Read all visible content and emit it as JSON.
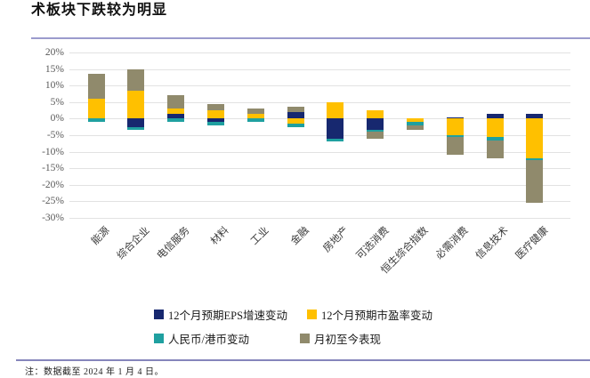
{
  "page": {
    "title": "术板块下跌较为明显",
    "footnote": "注：数据截至 2024 年 1 月 4 日。"
  },
  "chart_data": {
    "type": "bar",
    "stacked": true,
    "title": "术板块下跌较为明显",
    "xlabel": "",
    "ylabel": "",
    "ylim": [
      -30,
      20
    ],
    "y_tick_step": 5,
    "y_tick_labels": [
      "20%",
      "15%",
      "10%",
      "5%",
      "0%",
      "-5%",
      "-10%",
      "-15%",
      "-20%",
      "-25%",
      "-30%"
    ],
    "grid": true,
    "legend_position": "bottom",
    "categories": [
      "能源",
      "综合企业",
      "电信服务",
      "材料",
      "工业",
      "金融",
      "房地产",
      "可选消费",
      "恒生综合指数",
      "必需消费",
      "信息技术",
      "医疗健康"
    ],
    "series": [
      {
        "name": "12个月预期EPS增速变动",
        "color": "#17286F",
        "values": [
          0,
          -2.5,
          1.5,
          -1,
          0,
          2,
          -6,
          -3.5,
          0,
          0.5,
          1.5,
          1.5
        ]
      },
      {
        "name": "12个月预期市盈率变动",
        "color": "#FFC000",
        "values": [
          6,
          8.5,
          1.5,
          2.5,
          1.5,
          -1.5,
          5,
          2.5,
          -1,
          -5,
          -5.5,
          -12
        ]
      },
      {
        "name": "人民币/港币变动",
        "color": "#1FA0A0",
        "values": [
          -1,
          -1,
          -1,
          -1,
          -1,
          -1,
          -1,
          -0.5,
          -1,
          -0.5,
          -1,
          -0.5
        ]
      },
      {
        "name": "月初至今表现",
        "color": "#908A6C",
        "values": [
          7.5,
          6.5,
          4,
          2,
          1.5,
          1.5,
          0,
          -2,
          -1.5,
          -5.5,
          -5.5,
          -13
        ]
      }
    ]
  }
}
